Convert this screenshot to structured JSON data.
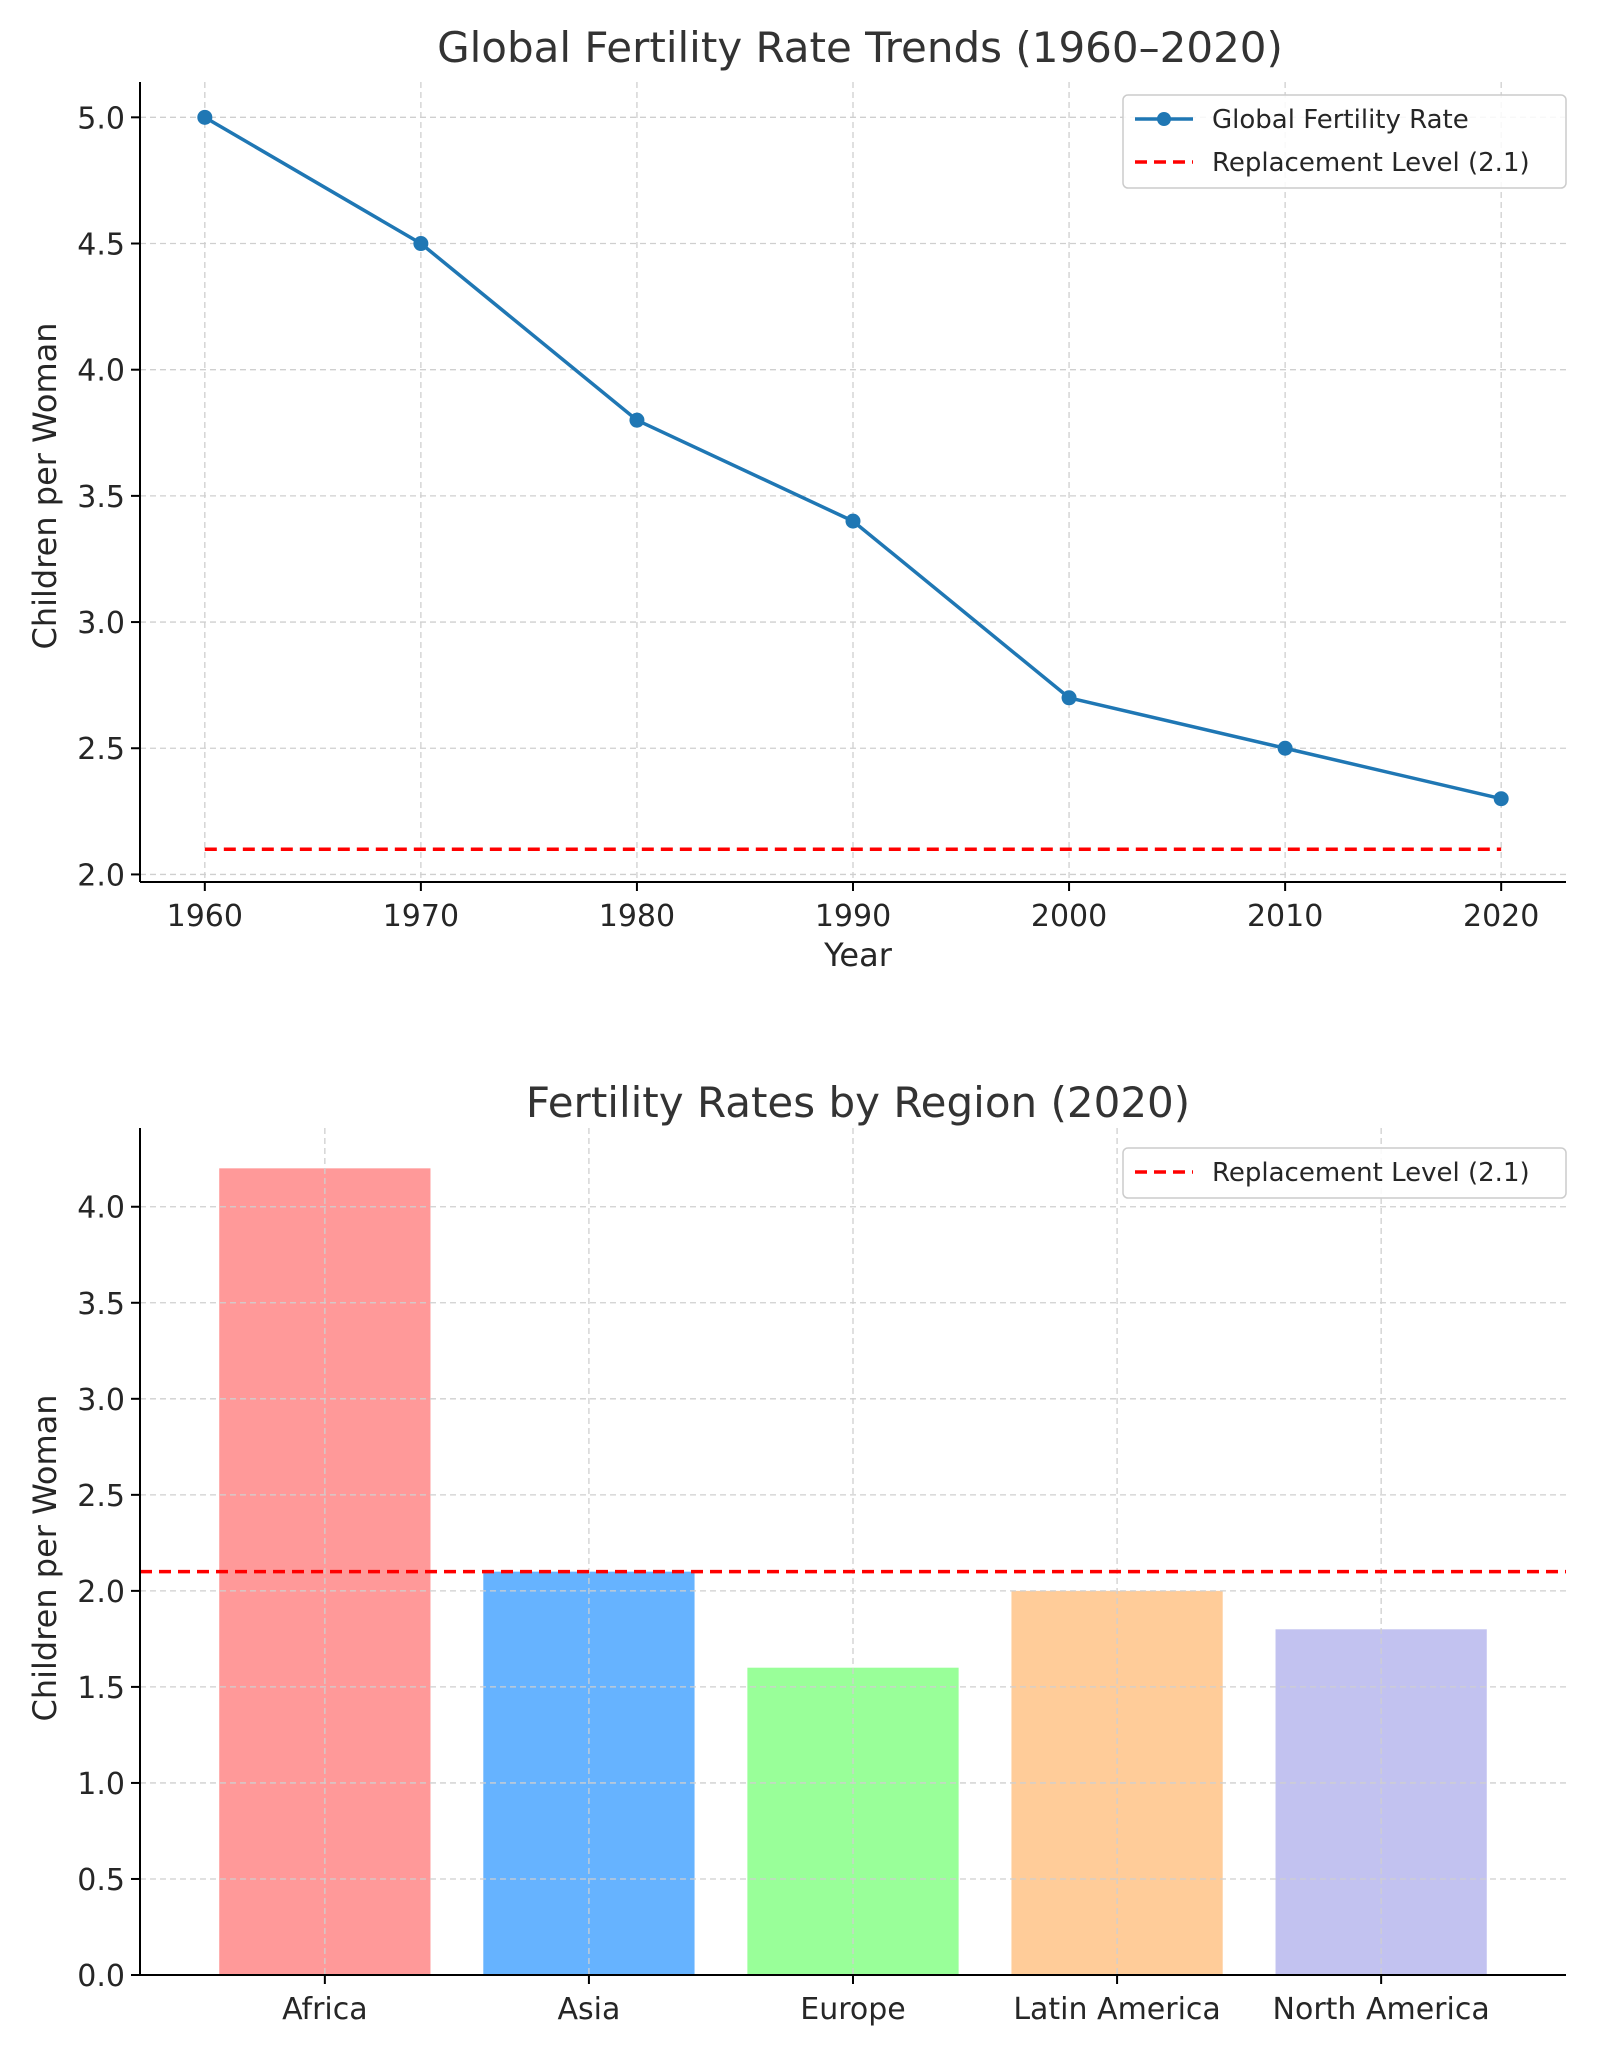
{
  "chart_data": [
    {
      "type": "line",
      "title": "Global Fertility Rate Trends (1960–2020)",
      "xlabel": "Year",
      "ylabel": "Children per Woman",
      "x": [
        1960,
        1970,
        1980,
        1990,
        2000,
        2010,
        2020
      ],
      "xticks": [
        "1960",
        "1970",
        "1980",
        "1990",
        "2000",
        "2010",
        "2020"
      ],
      "yticks": [
        "2.0",
        "2.5",
        "3.0",
        "3.5",
        "4.0",
        "4.5",
        "5.0"
      ],
      "xlim": [
        1957,
        2023
      ],
      "ylim": [
        1.97,
        5.14
      ],
      "grid": true,
      "legend_position": "top-right",
      "series": [
        {
          "name": "Global Fertility Rate",
          "values": [
            5.0,
            4.5,
            3.8,
            3.4,
            2.7,
            2.5,
            2.3
          ],
          "color": "#1f77b4",
          "style": "solid-with-markers"
        }
      ],
      "reference_lines": [
        {
          "name": "Replacement Level (2.1)",
          "y": 2.1,
          "x_range": [
            1960,
            2020
          ],
          "color": "#ff0000",
          "style": "dashed"
        }
      ]
    },
    {
      "type": "bar",
      "title": "Fertility Rates by Region (2020)",
      "xlabel": "",
      "ylabel": "Children per Woman",
      "categories": [
        "Africa",
        "Asia",
        "Europe",
        "Latin America",
        "North America"
      ],
      "values": [
        4.2,
        2.1,
        1.6,
        2.0,
        1.8
      ],
      "colors": [
        "#ff9999",
        "#66b3ff",
        "#99ff99",
        "#ffcc99",
        "#c2c2f0"
      ],
      "yticks": [
        "0.0",
        "0.5",
        "1.0",
        "1.5",
        "2.0",
        "2.5",
        "3.0",
        "3.5",
        "4.0"
      ],
      "ylim": [
        0,
        4.41
      ],
      "grid": true,
      "legend_position": "top-right",
      "reference_lines": [
        {
          "name": "Replacement Level (2.1)",
          "y": 2.1,
          "color": "#ff0000",
          "style": "dashed"
        }
      ]
    }
  ]
}
